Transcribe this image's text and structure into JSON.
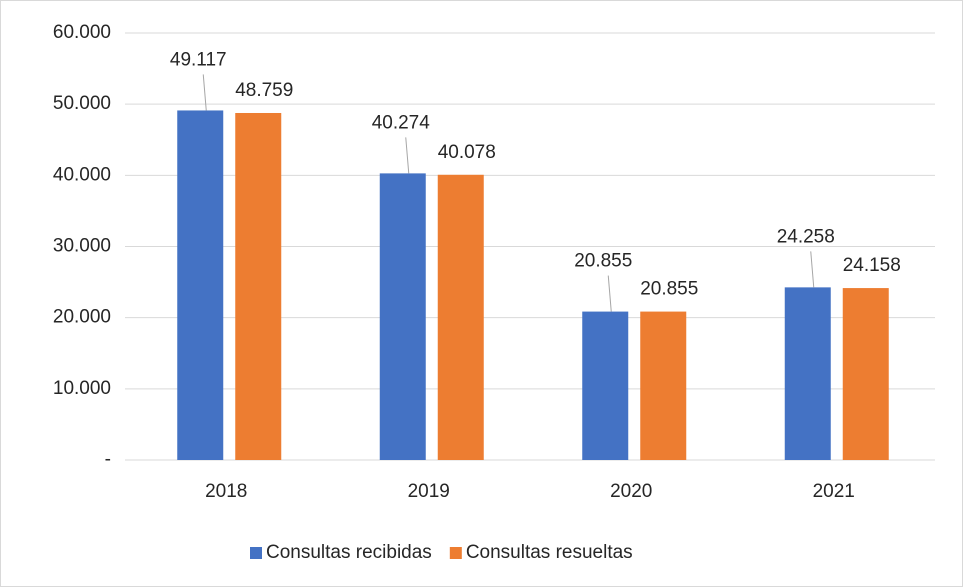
{
  "chart_data": {
    "type": "bar",
    "categories": [
      "2018",
      "2019",
      "2020",
      "2021"
    ],
    "series": [
      {
        "name": "Consultas recibidas",
        "color": "#4472c4",
        "values": [
          49117,
          40274,
          20855,
          24258
        ],
        "value_labels": [
          "49.117",
          "40.274",
          "20.855",
          "24.258"
        ]
      },
      {
        "name": "Consultas resueltas",
        "color": "#ed7d31",
        "values": [
          48759,
          40078,
          20855,
          24158
        ],
        "value_labels": [
          "48.759",
          "40.078",
          "20.855",
          "24.158"
        ]
      }
    ],
    "ylim": [
      0,
      60000
    ],
    "yticks": [
      {
        "value": 0,
        "label": "-"
      },
      {
        "value": 10000,
        "label": "10.000"
      },
      {
        "value": 20000,
        "label": "20.000"
      },
      {
        "value": 30000,
        "label": "30.000"
      },
      {
        "value": 40000,
        "label": "40.000"
      },
      {
        "value": 50000,
        "label": "50.000"
      },
      {
        "value": 60000,
        "label": "60.000"
      }
    ],
    "grid": true,
    "legend": "bottom"
  }
}
